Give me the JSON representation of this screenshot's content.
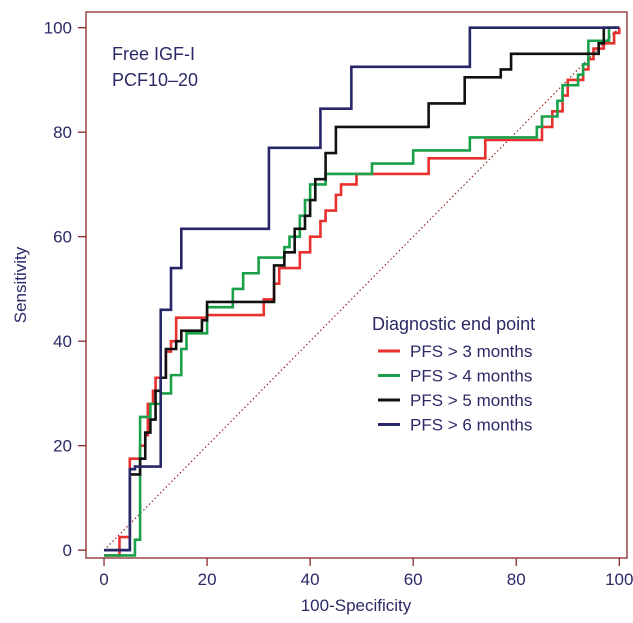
{
  "chart_data": {
    "type": "line",
    "title": "",
    "xlabel": "100-Specificity",
    "ylabel": "Sensitivity",
    "xlim": [
      -3.5,
      101.5
    ],
    "ylim": [
      -1.5,
      103
    ],
    "xticks": [
      0,
      20,
      40,
      60,
      80,
      100
    ],
    "yticks": [
      0,
      20,
      40,
      60,
      80,
      100
    ],
    "xtick_labels": [
      "0",
      "20",
      "40",
      "60",
      "80",
      "100"
    ],
    "ytick_labels": [
      "0",
      "20",
      "40",
      "60",
      "80",
      "100"
    ],
    "grid": false,
    "annotation_lines": [
      "Free IGF-I",
      "PCF10–20"
    ],
    "legend": {
      "title": "Diagnostic end point",
      "position": "center-right"
    },
    "reference_line": {
      "style": "dotted",
      "color": "#8b1a1a",
      "points": [
        [
          0,
          0
        ],
        [
          100,
          100
        ]
      ]
    },
    "series": [
      {
        "name": "PFS > 3 months",
        "color": "#e8302e",
        "points": [
          [
            0,
            -1
          ],
          [
            3,
            -1
          ],
          [
            3,
            2.5
          ],
          [
            5,
            2.5
          ],
          [
            5,
            17.5
          ],
          [
            7,
            17.5
          ],
          [
            7,
            20
          ],
          [
            8,
            20
          ],
          [
            8,
            22
          ],
          [
            8.5,
            22
          ],
          [
            8.5,
            28
          ],
          [
            9.5,
            28
          ],
          [
            9.5,
            30.5
          ],
          [
            10,
            30.5
          ],
          [
            10,
            33
          ],
          [
            12,
            33
          ],
          [
            12,
            38
          ],
          [
            13,
            38
          ],
          [
            13,
            40
          ],
          [
            14,
            40
          ],
          [
            14,
            44.5
          ],
          [
            20,
            44.5
          ],
          [
            20,
            45
          ],
          [
            31,
            45
          ],
          [
            31,
            48
          ],
          [
            33,
            48
          ],
          [
            33,
            51
          ],
          [
            34,
            51
          ],
          [
            34,
            54
          ],
          [
            38,
            54
          ],
          [
            38,
            57
          ],
          [
            40,
            57
          ],
          [
            40,
            60
          ],
          [
            42,
            60
          ],
          [
            42,
            63
          ],
          [
            43,
            63
          ],
          [
            43,
            65
          ],
          [
            45,
            65
          ],
          [
            45,
            68
          ],
          [
            46,
            68
          ],
          [
            46,
            70
          ],
          [
            49,
            70
          ],
          [
            49,
            72
          ],
          [
            63,
            72
          ],
          [
            63,
            75
          ],
          [
            74,
            75
          ],
          [
            74,
            78.5
          ],
          [
            85,
            78.5
          ],
          [
            85,
            81
          ],
          [
            87,
            81
          ],
          [
            87,
            84
          ],
          [
            89,
            84
          ],
          [
            89,
            87
          ],
          [
            90,
            87
          ],
          [
            90,
            90
          ],
          [
            93,
            90
          ],
          [
            93,
            92
          ],
          [
            94,
            92
          ],
          [
            94,
            94
          ],
          [
            95,
            94
          ],
          [
            95,
            96
          ],
          [
            97,
            96
          ],
          [
            97,
            97
          ],
          [
            99,
            97
          ],
          [
            99,
            99
          ],
          [
            100,
            99
          ],
          [
            100,
            100
          ]
        ]
      },
      {
        "name": "PFS > 4 months",
        "color": "#1aa04a",
        "points": [
          [
            0,
            -1
          ],
          [
            6,
            -1
          ],
          [
            6,
            2
          ],
          [
            7,
            2
          ],
          [
            7,
            25.5
          ],
          [
            9,
            25.5
          ],
          [
            9,
            28
          ],
          [
            11,
            28
          ],
          [
            11,
            30
          ],
          [
            13,
            30
          ],
          [
            13,
            33.5
          ],
          [
            15,
            33.5
          ],
          [
            15,
            38.5
          ],
          [
            16,
            38.5
          ],
          [
            16,
            41.5
          ],
          [
            20,
            41.5
          ],
          [
            20,
            46.5
          ],
          [
            25,
            46.5
          ],
          [
            25,
            50
          ],
          [
            27,
            50
          ],
          [
            27,
            53
          ],
          [
            30,
            53
          ],
          [
            30,
            56
          ],
          [
            35,
            56
          ],
          [
            35,
            58
          ],
          [
            36,
            58
          ],
          [
            36,
            60
          ],
          [
            38,
            60
          ],
          [
            38,
            64
          ],
          [
            39,
            64
          ],
          [
            39,
            67
          ],
          [
            40,
            67
          ],
          [
            40,
            70
          ],
          [
            43,
            70
          ],
          [
            43,
            72
          ],
          [
            52,
            72
          ],
          [
            52,
            74
          ],
          [
            60,
            74
          ],
          [
            60,
            76.5
          ],
          [
            71,
            76.5
          ],
          [
            71,
            79
          ],
          [
            84,
            79
          ],
          [
            84,
            81
          ],
          [
            85,
            81
          ],
          [
            85,
            83
          ],
          [
            88,
            83
          ],
          [
            88,
            86
          ],
          [
            89,
            86
          ],
          [
            89,
            89
          ],
          [
            92,
            89
          ],
          [
            92,
            91
          ],
          [
            93,
            91
          ],
          [
            93,
            93
          ],
          [
            94,
            93
          ],
          [
            94,
            97.5
          ],
          [
            98,
            97.5
          ],
          [
            98,
            100
          ],
          [
            100,
            100
          ]
        ]
      },
      {
        "name": "PFS > 5 months",
        "color": "#111111",
        "points": [
          [
            0,
            0
          ],
          [
            5,
            0
          ],
          [
            5,
            14.5
          ],
          [
            7,
            14.5
          ],
          [
            7,
            17.5
          ],
          [
            8,
            17.5
          ],
          [
            8,
            22.5
          ],
          [
            9,
            22.5
          ],
          [
            9,
            25
          ],
          [
            10,
            25
          ],
          [
            10,
            30.5
          ],
          [
            11,
            30.5
          ],
          [
            11,
            33
          ],
          [
            12,
            33
          ],
          [
            12,
            38.5
          ],
          [
            14,
            38.5
          ],
          [
            14,
            40
          ],
          [
            15,
            40
          ],
          [
            15,
            42
          ],
          [
            19,
            42
          ],
          [
            19,
            44
          ],
          [
            20,
            44
          ],
          [
            20,
            47.5
          ],
          [
            33,
            47.5
          ],
          [
            33,
            54.5
          ],
          [
            35,
            54.5
          ],
          [
            35,
            57
          ],
          [
            37,
            57
          ],
          [
            37,
            61.5
          ],
          [
            39,
            61.5
          ],
          [
            39,
            64
          ],
          [
            40,
            64
          ],
          [
            40,
            67
          ],
          [
            41,
            67
          ],
          [
            41,
            71
          ],
          [
            43,
            71
          ],
          [
            43,
            76
          ],
          [
            45,
            76
          ],
          [
            45,
            81
          ],
          [
            63,
            81
          ],
          [
            63,
            85.5
          ],
          [
            70,
            85.5
          ],
          [
            70,
            90.5
          ],
          [
            77,
            90.5
          ],
          [
            77,
            92
          ],
          [
            79,
            92
          ],
          [
            79,
            95
          ],
          [
            96,
            95
          ],
          [
            96,
            97
          ],
          [
            97,
            97
          ],
          [
            97,
            100
          ],
          [
            100,
            100
          ]
        ]
      },
      {
        "name": "PFS > 6 months",
        "color": "#272669",
        "points": [
          [
            0,
            0
          ],
          [
            5,
            0
          ],
          [
            5,
            15.5
          ],
          [
            6,
            15.5
          ],
          [
            6,
            16
          ],
          [
            11,
            16
          ],
          [
            11,
            46
          ],
          [
            13,
            46
          ],
          [
            13,
            54
          ],
          [
            15,
            54
          ],
          [
            15,
            61.5
          ],
          [
            32,
            61.5
          ],
          [
            32,
            77
          ],
          [
            42,
            77
          ],
          [
            42,
            84.5
          ],
          [
            48,
            84.5
          ],
          [
            48,
            92.5
          ],
          [
            71,
            92.5
          ],
          [
            71,
            100
          ],
          [
            100,
            100
          ]
        ]
      }
    ]
  }
}
